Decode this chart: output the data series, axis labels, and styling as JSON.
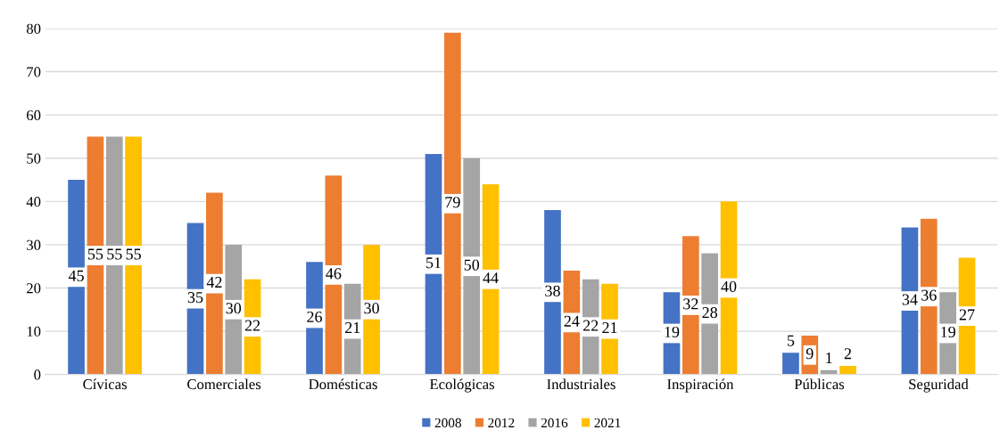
{
  "chart_data": {
    "type": "bar",
    "categories": [
      "Cívicas",
      "Comerciales",
      "Domésticas",
      "Ecológicas",
      "Industriales",
      "Inspiración",
      "Públicas",
      "Seguridad"
    ],
    "series": [
      {
        "name": "2008",
        "color": "#4472c4",
        "values": [
          45,
          35,
          26,
          51,
          38,
          19,
          5,
          34
        ]
      },
      {
        "name": "2012",
        "color": "#ed7d31",
        "values": [
          55,
          42,
          46,
          79,
          24,
          32,
          9,
          36
        ]
      },
      {
        "name": "2016",
        "color": "#a5a5a5",
        "values": [
          55,
          30,
          21,
          50,
          22,
          28,
          1,
          19
        ]
      },
      {
        "name": "2021",
        "color": "#ffc000",
        "values": [
          55,
          22,
          30,
          44,
          21,
          40,
          2,
          27
        ]
      }
    ],
    "ylim": [
      0,
      80
    ],
    "yticks": [
      0,
      10,
      20,
      30,
      40,
      50,
      60,
      70,
      80
    ],
    "grid": "y",
    "legend": "bottom",
    "data_labels": true
  }
}
